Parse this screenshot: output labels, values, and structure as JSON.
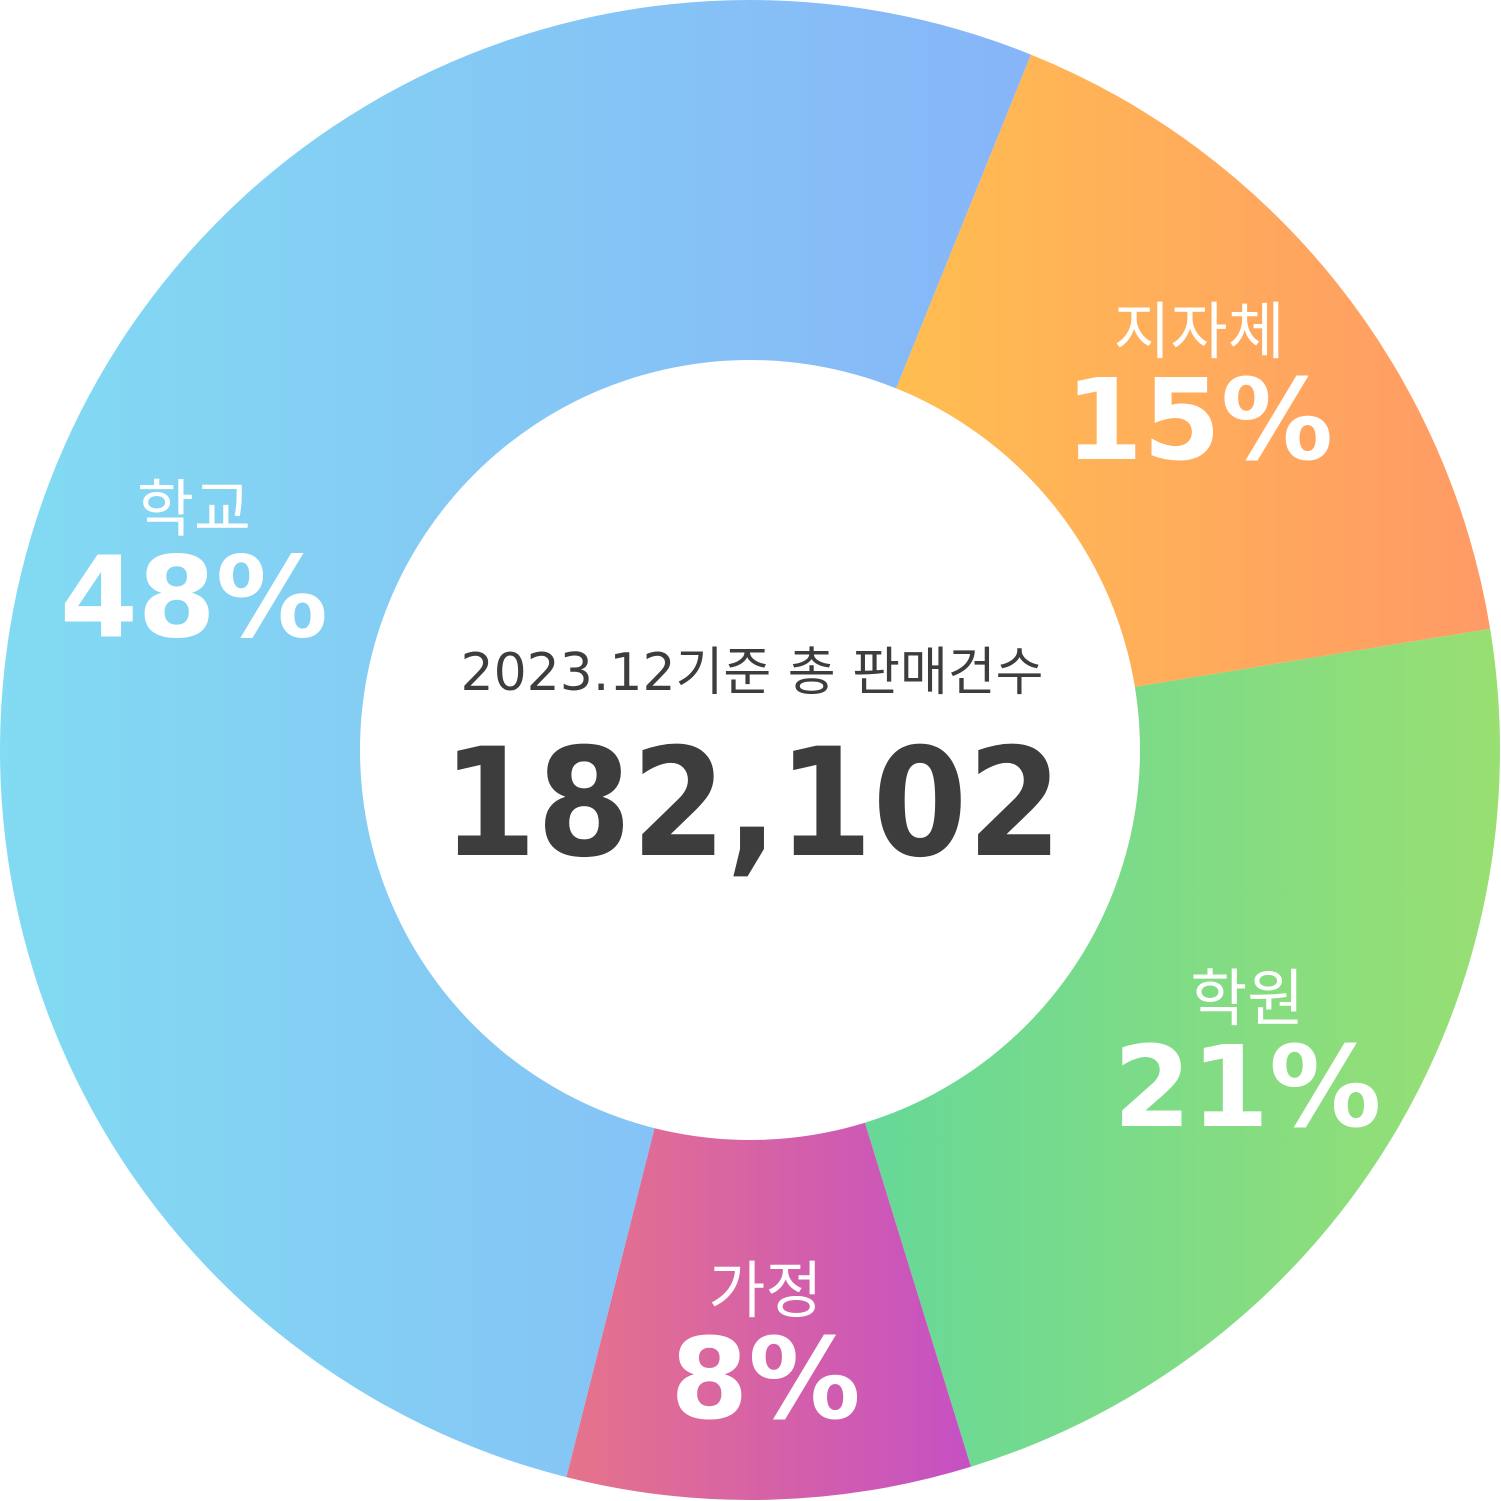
{
  "chart_data": {
    "type": "pie",
    "variant": "donut",
    "center": {
      "caption": "2023.12기준 총 판매건수",
      "total": "182,102"
    },
    "slices": [
      {
        "label": "지자체",
        "value": 15,
        "value_label": "15%",
        "color_start": "#ffc64a",
        "color_end": "#ff9a66"
      },
      {
        "label": "학원",
        "value": 21,
        "value_label": "21%",
        "color_start": "#5dd79f",
        "color_end": "#99df72"
      },
      {
        "label": "가정",
        "value": 8,
        "value_label": "8%",
        "color_start": "#e6738a",
        "color_end": "#c550c4"
      },
      {
        "label": "학교",
        "value": 48,
        "value_label": "48%",
        "color_start": "#82dbf2",
        "color_end": "#87b5f8"
      }
    ],
    "gap_between_slices": false
  }
}
